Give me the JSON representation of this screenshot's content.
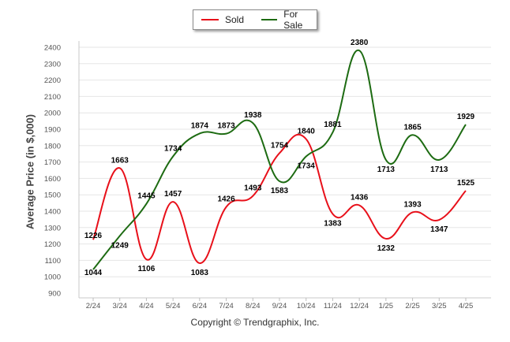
{
  "chart_data": {
    "type": "line",
    "title": "",
    "xlabel": "",
    "ylabel": "Average Price (in $,000)",
    "categories": [
      "2/24",
      "3/24",
      "4/24",
      "5/24",
      "6/24",
      "7/24",
      "8/24",
      "9/24",
      "10/24",
      "11/24",
      "12/24",
      "1/25",
      "2/25",
      "3/25",
      "4/25"
    ],
    "ylim": [
      900,
      2400
    ],
    "yticks": [
      900,
      1000,
      1100,
      1200,
      1300,
      1400,
      1500,
      1600,
      1700,
      1800,
      1900,
      2000,
      2100,
      2200,
      2300,
      2400
    ],
    "grid": true,
    "legend_position": "top-center",
    "series": [
      {
        "name": "Sold",
        "color": "#e8101a",
        "values": [
          1226,
          1663,
          1106,
          1457,
          1083,
          1426,
          1493,
          1754,
          1840,
          1383,
          1436,
          1232,
          1393,
          1347,
          1525
        ]
      },
      {
        "name": "For Sale",
        "color": "#1d6b12",
        "values": [
          1044,
          1249,
          1445,
          1734,
          1874,
          1873,
          1938,
          1583,
          1734,
          1881,
          2380,
          1713,
          1865,
          1713,
          1929
        ]
      }
    ]
  },
  "legend": {
    "sold_label": "Sold",
    "for_sale_label": "For Sale",
    "sold_color": "#e8101a",
    "for_sale_color": "#1d6b12"
  },
  "footer": {
    "copyright": "Copyright © Trendgraphix, Inc."
  }
}
